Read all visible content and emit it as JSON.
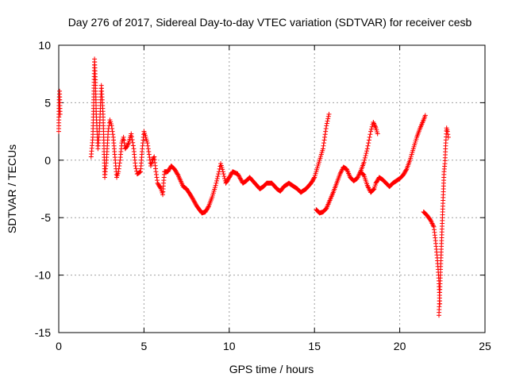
{
  "chart_data": {
    "type": "scatter",
    "title": "Day 276 of 2017, Sidereal Day-to-day VTEC variation (SDTVAR) for receiver cesb",
    "xlabel": "GPS time / hours",
    "ylabel": "SDTVAR / TECUs",
    "xlim": [
      0,
      25
    ],
    "ylim": [
      -15,
      10
    ],
    "xticks": [
      0,
      5,
      10,
      15,
      20,
      25
    ],
    "yticks": [
      -15,
      -10,
      -5,
      0,
      5,
      10
    ],
    "grid": true,
    "marker": "+",
    "series_color": "#ff0000",
    "key_points": [
      [
        0.0,
        2.5
      ],
      [
        0.02,
        5.0
      ],
      [
        0.05,
        6.0
      ],
      [
        0.08,
        4.0
      ],
      [
        1.9,
        0.3
      ],
      [
        2.0,
        2.0
      ],
      [
        2.05,
        5.0
      ],
      [
        2.1,
        8.8
      ],
      [
        2.15,
        7.0
      ],
      [
        2.2,
        4.0
      ],
      [
        2.3,
        1.0
      ],
      [
        2.4,
        3.0
      ],
      [
        2.5,
        6.5
      ],
      [
        2.6,
        4.0
      ],
      [
        2.7,
        -1.5
      ],
      [
        2.8,
        0.0
      ],
      [
        2.9,
        2.5
      ],
      [
        3.0,
        3.5
      ],
      [
        3.1,
        3.0
      ],
      [
        3.2,
        2.0
      ],
      [
        3.4,
        -1.5
      ],
      [
        3.5,
        -1.0
      ],
      [
        3.6,
        0.0
      ],
      [
        3.7,
        1.5
      ],
      [
        3.8,
        2.0
      ],
      [
        3.9,
        1.0
      ],
      [
        4.0,
        1.2
      ],
      [
        4.1,
        1.5
      ],
      [
        4.25,
        2.3
      ],
      [
        4.4,
        1.0
      ],
      [
        4.5,
        -0.5
      ],
      [
        4.6,
        -1.2
      ],
      [
        4.8,
        -1.0
      ],
      [
        4.9,
        1.0
      ],
      [
        5.0,
        2.5
      ],
      [
        5.2,
        1.5
      ],
      [
        5.4,
        -0.5
      ],
      [
        5.5,
        0.0
      ],
      [
        5.6,
        0.3
      ],
      [
        5.7,
        -1.0
      ],
      [
        5.8,
        -2.0
      ],
      [
        6.0,
        -2.5
      ],
      [
        6.1,
        -3.0
      ],
      [
        6.2,
        -1.0
      ],
      [
        6.4,
        -1.0
      ],
      [
        6.6,
        -0.5
      ],
      [
        6.8,
        -0.8
      ],
      [
        7.0,
        -1.3
      ],
      [
        7.3,
        -2.3
      ],
      [
        7.5,
        -2.5
      ],
      [
        7.8,
        -3.2
      ],
      [
        8.1,
        -4.0
      ],
      [
        8.4,
        -4.6
      ],
      [
        8.6,
        -4.5
      ],
      [
        8.8,
        -4.0
      ],
      [
        9.0,
        -3.2
      ],
      [
        9.2,
        -2.2
      ],
      [
        9.4,
        -1.0
      ],
      [
        9.5,
        -0.3
      ],
      [
        9.6,
        -0.8
      ],
      [
        9.8,
        -2.0
      ],
      [
        10.0,
        -1.5
      ],
      [
        10.2,
        -1.0
      ],
      [
        10.5,
        -1.2
      ],
      [
        10.8,
        -2.0
      ],
      [
        11.0,
        -1.8
      ],
      [
        11.2,
        -1.5
      ],
      [
        11.5,
        -2.0
      ],
      [
        11.8,
        -2.5
      ],
      [
        12.0,
        -2.3
      ],
      [
        12.2,
        -2.0
      ],
      [
        12.5,
        -2.0
      ],
      [
        12.8,
        -2.5
      ],
      [
        13.0,
        -2.7
      ],
      [
        13.2,
        -2.3
      ],
      [
        13.5,
        -2.0
      ],
      [
        13.8,
        -2.3
      ],
      [
        14.0,
        -2.5
      ],
      [
        14.2,
        -2.8
      ],
      [
        14.5,
        -2.5
      ],
      [
        14.8,
        -2.0
      ],
      [
        15.0,
        -1.5
      ],
      [
        15.2,
        -0.5
      ],
      [
        15.5,
        1.0
      ],
      [
        15.7,
        3.0
      ],
      [
        15.85,
        4.0
      ],
      [
        15.1,
        -4.3
      ],
      [
        15.3,
        -4.6
      ],
      [
        15.5,
        -4.5
      ],
      [
        15.7,
        -4.2
      ],
      [
        15.9,
        -3.5
      ],
      [
        16.1,
        -2.8
      ],
      [
        16.3,
        -2.0
      ],
      [
        16.5,
        -1.2
      ],
      [
        16.7,
        -0.6
      ],
      [
        16.9,
        -0.8
      ],
      [
        17.1,
        -1.5
      ],
      [
        17.3,
        -1.8
      ],
      [
        17.5,
        -1.6
      ],
      [
        17.7,
        -1.0
      ],
      [
        17.9,
        -0.2
      ],
      [
        18.1,
        1.0
      ],
      [
        18.3,
        2.5
      ],
      [
        18.45,
        3.3
      ],
      [
        18.6,
        2.8
      ],
      [
        18.7,
        2.3
      ],
      [
        17.7,
        -1.0
      ],
      [
        17.9,
        -1.3
      ],
      [
        18.1,
        -2.2
      ],
      [
        18.3,
        -2.8
      ],
      [
        18.5,
        -2.5
      ],
      [
        18.6,
        -2.0
      ],
      [
        18.8,
        -1.5
      ],
      [
        19.0,
        -1.7
      ],
      [
        19.2,
        -2.0
      ],
      [
        19.4,
        -2.3
      ],
      [
        19.6,
        -2.0
      ],
      [
        19.8,
        -1.8
      ],
      [
        20.0,
        -1.6
      ],
      [
        20.2,
        -1.3
      ],
      [
        20.4,
        -0.8
      ],
      [
        20.6,
        0.0
      ],
      [
        20.8,
        1.0
      ],
      [
        21.0,
        2.0
      ],
      [
        21.2,
        2.8
      ],
      [
        21.4,
        3.5
      ],
      [
        21.5,
        3.9
      ],
      [
        21.4,
        -4.5
      ],
      [
        21.6,
        -4.8
      ],
      [
        21.8,
        -5.2
      ],
      [
        22.0,
        -5.8
      ],
      [
        22.1,
        -7.0
      ],
      [
        22.2,
        -8.5
      ],
      [
        22.25,
        -9.5
      ],
      [
        22.3,
        -10.5
      ],
      [
        22.35,
        -12.5
      ],
      [
        22.3,
        -13.5
      ],
      [
        22.6,
        -1.0
      ],
      [
        22.65,
        -0.3
      ],
      [
        22.7,
        1.5
      ],
      [
        22.75,
        2.8
      ],
      [
        22.8,
        2.5
      ],
      [
        22.85,
        2.0
      ]
    ]
  }
}
